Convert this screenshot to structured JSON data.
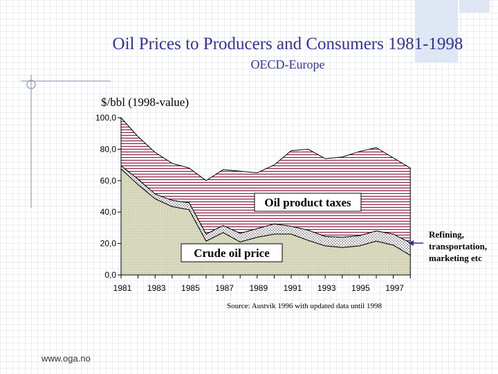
{
  "title": "Oil Prices to Producers and Consumers 1981-1998",
  "subtitle": "OECD-Europe",
  "source": "Source: Austvik 1996 with updated data until 1998",
  "footer": "www.oga.no",
  "colors": {
    "title": "#33339a",
    "taxes_band": "#8b1a3a",
    "refining_band": "#ffffff",
    "crude_band": "#d9d9c0",
    "arrow": "#33339a"
  },
  "chart_data": {
    "type": "area",
    "stacked": true,
    "title": "Oil Prices to Producers and Consumers 1981-1998",
    "ylabel": "$/bbl (1998-value)",
    "xlabel": "",
    "ylim": [
      0,
      100
    ],
    "y_ticks": [
      "0,0",
      "20,0",
      "40,0",
      "60,0",
      "80,0",
      "100,0"
    ],
    "x_ticks": [
      "1981",
      "1983",
      "1985",
      "1987",
      "1989",
      "1991",
      "1993",
      "1995",
      "1997"
    ],
    "x": [
      1981,
      1982,
      1983,
      1984,
      1985,
      1986,
      1987,
      1988,
      1989,
      1990,
      1991,
      1992,
      1993,
      1994,
      1995,
      1996,
      1997,
      1998
    ],
    "series": [
      {
        "name": "Crude oil price",
        "values": [
          67.5,
          57.5,
          48.5,
          43.5,
          41.5,
          21.5,
          27.0,
          21.0,
          24.0,
          26.0,
          26.0,
          22.0,
          18.5,
          17.5,
          18.5,
          21.5,
          19.0,
          12.5
        ]
      },
      {
        "name": "Refining, transportation, marketing etc",
        "values": [
          2.0,
          3.5,
          3.0,
          4.0,
          4.5,
          4.5,
          4.5,
          5.5,
          5.5,
          6.5,
          5.0,
          6.5,
          6.0,
          6.5,
          6.5,
          6.5,
          7.0,
          8.0
        ]
      },
      {
        "name": "Oil product taxes",
        "values": [
          30.5,
          27.0,
          26.5,
          23.5,
          22.0,
          34.0,
          35.5,
          39.5,
          35.5,
          37.5,
          48.0,
          51.5,
          49.5,
          51.0,
          53.5,
          53.0,
          48.5,
          47.5
        ]
      }
    ],
    "totals": [
      100.0,
      88.0,
      78.0,
      71.0,
      68.0,
      60.0,
      67.0,
      66.0,
      65.0,
      70.0,
      79.0,
      80.0,
      74.0,
      75.0,
      78.5,
      81.0,
      74.5,
      68.0
    ],
    "annotations": [
      "Oil product taxes",
      "Crude oil price",
      "Refining, transportation, marketing etc"
    ]
  }
}
